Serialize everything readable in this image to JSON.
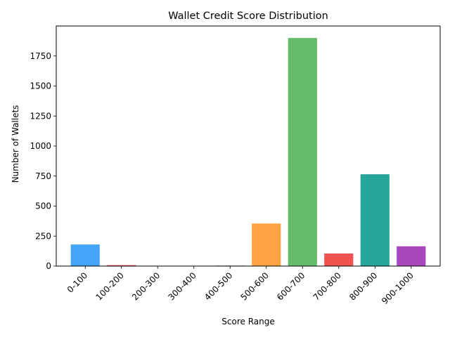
{
  "chart_data": {
    "type": "bar",
    "title": "Wallet Credit Score Distribution",
    "xlabel": "Score Range",
    "ylabel": "Number of Wallets",
    "categories": [
      "0-100",
      "100-200",
      "200-300",
      "300-400",
      "400-500",
      "500-600",
      "600-700",
      "700-800",
      "800-900",
      "900-1000"
    ],
    "values": [
      180,
      8,
      0,
      0,
      4,
      355,
      1900,
      105,
      765,
      165
    ],
    "colors": [
      "#42a5f5",
      "#ef5350",
      "#66bb6a",
      "#ffa726",
      "#7e57c2",
      "#ffa343",
      "#66bb6a",
      "#ef5350",
      "#26a69a",
      "#ab47bc"
    ],
    "ylim": [
      0,
      2000
    ],
    "yticks": [
      0,
      250,
      500,
      750,
      1000,
      1250,
      1500,
      1750
    ],
    "grid": false,
    "legend": "none"
  }
}
